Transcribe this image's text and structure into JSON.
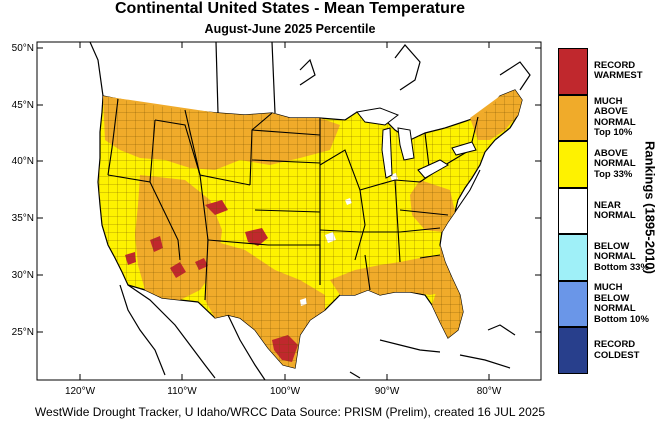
{
  "title": "Continental United States - Mean Temperature",
  "subtitle": "August-June 2025 Percentile",
  "credit": "WestWide Drought Tracker, U Idaho/WRCC Data Source: PRISM (Prelim), created 16 JUL 2025",
  "axes": {
    "lat_labels": [
      "50°N",
      "45°N",
      "40°N",
      "35°N",
      "30°N",
      "25°N"
    ],
    "lon_labels": [
      "120°W",
      "110°W",
      "100°W",
      "90°W",
      "80°W"
    ]
  },
  "legend": {
    "title": "Rankings (1895-2010)",
    "items": [
      {
        "label": "RECORD\nWARMEST",
        "color": "#c0282d"
      },
      {
        "label": "MUCH\nABOVE\nNORMAL\nTop 10%",
        "color": "#f0ab2a"
      },
      {
        "label": "ABOVE\nNORMAL\nTop 33%",
        "color": "#fef200"
      },
      {
        "label": "NEAR\nNORMAL",
        "color": "#ffffff"
      },
      {
        "label": "BELOW\nNORMAL\nBottom 33%",
        "color": "#9ff0f8"
      },
      {
        "label": "MUCH\nBELOW\nNORMAL\nBottom 10%",
        "color": "#6a96e8"
      },
      {
        "label": "RECORD\nCOLDEST",
        "color": "#283f8c"
      }
    ]
  },
  "colors": {
    "above": "#fef200",
    "much_above": "#f0ab2a",
    "record_warm": "#c0282d",
    "near_normal": "#ffffff"
  }
}
